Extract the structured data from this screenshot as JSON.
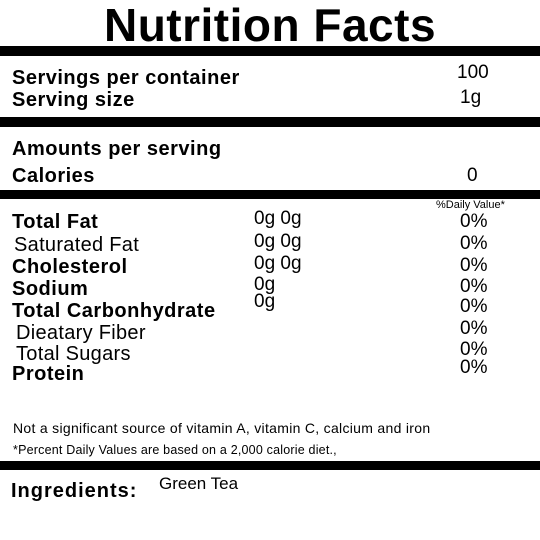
{
  "title": "Nutrition Facts",
  "servings": {
    "per_container_label": "Servings per container",
    "per_container_value": "100",
    "size_label": "Serving size",
    "size_value": "1g"
  },
  "amounts": {
    "heading": "Amounts per serving",
    "calories_label": "Calories",
    "calories_value": "0"
  },
  "daily_value_header": "%Daily Value*",
  "nutrients": [
    {
      "label": "Total Fat",
      "amount": "0g 0g",
      "dv": "0%"
    },
    {
      "label": "Saturated Fat",
      "amount": "0g 0g",
      "dv": "0%"
    },
    {
      "label": "Cholesterol",
      "amount": "0g 0g",
      "dv": "0%"
    },
    {
      "label": "Sodium",
      "amount": "0g",
      "dv": "0%"
    },
    {
      "label": "Total Carbonhydrate",
      "amount": "0g",
      "dv": "0%"
    },
    {
      "label": "Dieatary Fiber",
      "amount": "",
      "dv": "0%"
    },
    {
      "label": "Total Sugars",
      "amount": "",
      "dv": "0%"
    },
    {
      "label": "Protein",
      "amount": "",
      "dv": "0%"
    }
  ],
  "footnotes": {
    "vitamins": "Not a significant source of vitamin A, vitamin C, calcium and iron",
    "percent": "*Percent Daily Values are based on a 2,000 calorie diet.,"
  },
  "ingredients": {
    "label": "Ingredients:",
    "value": "Green Tea"
  }
}
